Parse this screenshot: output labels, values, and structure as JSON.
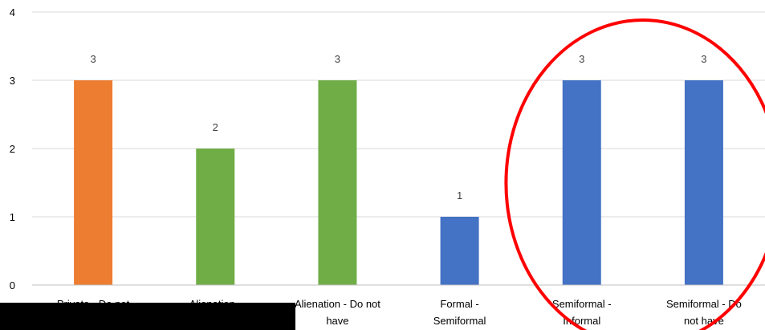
{
  "chart_data": {
    "type": "bar",
    "categories": [
      [
        "Private - Do not"
      ],
      [
        "Alienation -"
      ],
      [
        "Alienation - Do not",
        "have"
      ],
      [
        "Formal -",
        "Semiformal"
      ],
      [
        "Semiformal -",
        "Informal"
      ],
      [
        "Semiformal - Do",
        "not have"
      ]
    ],
    "values": [
      3,
      2,
      3,
      1,
      3,
      3
    ],
    "bar_colors": [
      "#ed7d31",
      "#70ad47",
      "#70ad47",
      "#4472c4",
      "#4472c4",
      "#4472c4"
    ],
    "data_labels": [
      "3",
      "2",
      "3",
      "1",
      "3",
      "3"
    ],
    "ylim": [
      0,
      4
    ],
    "yticks": [
      0,
      1,
      2,
      3,
      4
    ],
    "grid": true,
    "title": "",
    "xlabel": "",
    "ylabel": "",
    "annotation": {
      "shape": "ellipse",
      "color": "#ff0000",
      "encircles_categories": [
        4,
        5
      ]
    },
    "redaction_color": "#000000"
  }
}
